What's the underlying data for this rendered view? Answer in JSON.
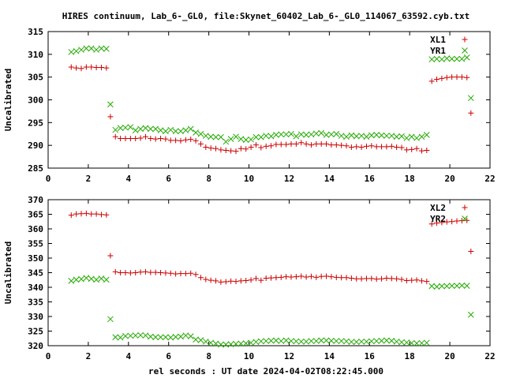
{
  "title": "HIRES continuum, Lab_6-_GL0, file:Skynet_60402_Lab_6-_GL0_114067_63592.cyb.txt",
  "xlabel": "rel seconds : UT date 2024-04-02T08:22:45.000",
  "colors": {
    "red": "#cc0000",
    "green": "#22aa00",
    "axis": "#000000"
  },
  "chart_data": [
    {
      "type": "scatter",
      "ylabel": "Uncalibrated",
      "xlim": [
        0,
        22
      ],
      "ylim": [
        285,
        315
      ],
      "xticks": [
        0,
        2,
        4,
        6,
        8,
        10,
        12,
        14,
        16,
        18,
        20,
        22
      ],
      "yticks": [
        285,
        290,
        295,
        300,
        305,
        310,
        315
      ],
      "legend": "top-right",
      "series": [
        {
          "name": "XL1",
          "marker": "plus",
          "color": "#cc0000",
          "x": [
            1.15,
            1.4,
            1.65,
            1.9,
            2.15,
            2.4,
            2.65,
            2.9,
            3.1,
            3.35,
            3.6,
            3.85,
            4.1,
            4.35,
            4.6,
            4.85,
            5.1,
            5.35,
            5.6,
            5.85,
            6.1,
            6.35,
            6.6,
            6.85,
            7.1,
            7.35,
            7.6,
            7.85,
            8.1,
            8.35,
            8.6,
            8.85,
            9.1,
            9.35,
            9.6,
            9.85,
            10.1,
            10.35,
            10.6,
            10.85,
            11.1,
            11.35,
            11.6,
            11.85,
            12.1,
            12.35,
            12.6,
            12.85,
            13.1,
            13.35,
            13.6,
            13.85,
            14.1,
            14.35,
            14.6,
            14.85,
            15.1,
            15.35,
            15.6,
            15.85,
            16.1,
            16.35,
            16.6,
            16.85,
            17.1,
            17.35,
            17.6,
            17.85,
            18.1,
            18.35,
            18.6,
            18.85,
            19.1,
            19.35,
            19.6,
            19.85,
            20.1,
            20.35,
            20.6,
            20.85,
            21.05
          ],
          "y": [
            307.2,
            307,
            306.9,
            307.2,
            307.2,
            307.1,
            307.1,
            307.0,
            296.3,
            291.9,
            291.5,
            291.5,
            291.5,
            291.5,
            291.6,
            291.9,
            291.5,
            291.4,
            291.5,
            291.4,
            291.1,
            291.1,
            291.0,
            291.2,
            291.3,
            291.0,
            290.3,
            289.6,
            289.4,
            289.3,
            289.0,
            288.9,
            288.8,
            288.7,
            289.3,
            289.2,
            289.6,
            290.1,
            289.5,
            289.8,
            289.9,
            290.2,
            290.2,
            290.2,
            290.3,
            290.3,
            290.6,
            290.3,
            290.1,
            290.3,
            290.3,
            290.3,
            290.1,
            290.1,
            290.0,
            289.9,
            289.6,
            289.7,
            289.6,
            289.8,
            289.9,
            289.7,
            289.7,
            289.7,
            289.8,
            289.6,
            289.5,
            289.0,
            289.1,
            289.3,
            288.8,
            288.9,
            304.1,
            304.5,
            304.7,
            304.9,
            305.0,
            305.0,
            305.0,
            304.9,
            297.1
          ]
        },
        {
          "name": "YR1",
          "marker": "cross",
          "color": "#22aa00",
          "x": [
            1.15,
            1.4,
            1.65,
            1.9,
            2.15,
            2.4,
            2.65,
            2.9,
            3.1,
            3.35,
            3.6,
            3.85,
            4.1,
            4.35,
            4.6,
            4.85,
            5.1,
            5.35,
            5.6,
            5.85,
            6.1,
            6.35,
            6.6,
            6.85,
            7.1,
            7.35,
            7.6,
            7.85,
            8.1,
            8.35,
            8.6,
            8.85,
            9.1,
            9.35,
            9.6,
            9.85,
            10.1,
            10.35,
            10.6,
            10.85,
            11.1,
            11.35,
            11.6,
            11.85,
            12.1,
            12.35,
            12.6,
            12.85,
            13.1,
            13.35,
            13.6,
            13.85,
            14.1,
            14.35,
            14.6,
            14.85,
            15.1,
            15.35,
            15.6,
            15.85,
            16.1,
            16.35,
            16.6,
            16.85,
            17.1,
            17.35,
            17.6,
            17.85,
            18.1,
            18.35,
            18.6,
            18.85,
            19.1,
            19.35,
            19.6,
            19.85,
            20.1,
            20.35,
            20.6,
            20.85,
            21.05
          ],
          "y": [
            310.5,
            310.7,
            311.0,
            311.3,
            311.3,
            311.0,
            311.3,
            311.2,
            299.0,
            293.4,
            293.8,
            293.9,
            294.0,
            293.3,
            293.6,
            293.8,
            293.6,
            293.6,
            293.3,
            293.1,
            293.4,
            293.1,
            293.1,
            293.3,
            293.6,
            292.8,
            292.5,
            292.1,
            291.9,
            291.8,
            291.8,
            290.8,
            291.4,
            291.9,
            291.4,
            291.2,
            291.3,
            291.8,
            291.8,
            292.1,
            292.0,
            292.3,
            292.4,
            292.4,
            292.5,
            292.0,
            292.4,
            292.3,
            292.4,
            292.6,
            292.7,
            292.3,
            292.4,
            292.5,
            292.1,
            291.9,
            292.2,
            292.0,
            292.1,
            291.9,
            292.2,
            292.3,
            292.2,
            292.1,
            292.1,
            291.9,
            292.0,
            291.6,
            291.9,
            291.6,
            291.9,
            292.3,
            308.9,
            309.0,
            308.9,
            309.1,
            309.0,
            309.0,
            309.0,
            309.3,
            300.4
          ]
        }
      ]
    },
    {
      "type": "scatter",
      "ylabel": "Uncalibrated",
      "xlim": [
        0,
        22
      ],
      "ylim": [
        320,
        370
      ],
      "xticks": [
        0,
        2,
        4,
        6,
        8,
        10,
        12,
        14,
        16,
        18,
        20,
        22
      ],
      "yticks": [
        320,
        325,
        330,
        335,
        340,
        345,
        350,
        355,
        360,
        365,
        370
      ],
      "legend": "top-right",
      "series": [
        {
          "name": "XL2",
          "marker": "plus",
          "color": "#cc0000",
          "x": [
            1.15,
            1.4,
            1.65,
            1.9,
            2.15,
            2.4,
            2.65,
            2.9,
            3.1,
            3.35,
            3.6,
            3.85,
            4.1,
            4.35,
            4.6,
            4.85,
            5.1,
            5.35,
            5.6,
            5.85,
            6.1,
            6.35,
            6.6,
            6.85,
            7.1,
            7.35,
            7.6,
            7.85,
            8.1,
            8.35,
            8.6,
            8.85,
            9.1,
            9.35,
            9.6,
            9.85,
            10.1,
            10.35,
            10.6,
            10.85,
            11.1,
            11.35,
            11.6,
            11.85,
            12.1,
            12.35,
            12.6,
            12.85,
            13.1,
            13.35,
            13.6,
            13.85,
            14.1,
            14.35,
            14.6,
            14.85,
            15.1,
            15.35,
            15.6,
            15.85,
            16.1,
            16.35,
            16.6,
            16.85,
            17.1,
            17.35,
            17.6,
            17.85,
            18.1,
            18.35,
            18.6,
            18.85,
            19.1,
            19.35,
            19.6,
            19.85,
            20.1,
            20.35,
            20.6,
            20.85,
            21.05
          ],
          "y": [
            364.7,
            365.1,
            365.2,
            365.3,
            365.1,
            365.1,
            364.9,
            364.8,
            350.8,
            345.3,
            345.0,
            345.0,
            344.9,
            345.0,
            345.2,
            345.3,
            345.1,
            345.1,
            345.0,
            344.9,
            344.8,
            344.6,
            344.7,
            344.7,
            344.8,
            344.4,
            343.3,
            342.7,
            342.4,
            342.2,
            341.8,
            341.9,
            342.1,
            342.0,
            342.2,
            342.3,
            342.5,
            343.0,
            342.4,
            343.1,
            343.2,
            343.3,
            343.4,
            343.6,
            343.5,
            343.6,
            343.8,
            343.5,
            343.7,
            343.4,
            343.7,
            343.8,
            343.6,
            343.4,
            343.3,
            343.3,
            343.1,
            342.9,
            342.9,
            343.0,
            343.0,
            342.8,
            342.9,
            343.1,
            343.0,
            342.9,
            342.7,
            342.3,
            342.4,
            342.5,
            342.2,
            342.0,
            361.7,
            362.0,
            362.2,
            362.4,
            362.5,
            362.7,
            362.8,
            362.9,
            352.3
          ]
        },
        {
          "name": "YR2",
          "marker": "cross",
          "color": "#22aa00",
          "x": [
            1.15,
            1.4,
            1.65,
            1.9,
            2.15,
            2.4,
            2.65,
            2.9,
            3.1,
            3.35,
            3.6,
            3.85,
            4.1,
            4.35,
            4.6,
            4.85,
            5.1,
            5.35,
            5.6,
            5.85,
            6.1,
            6.35,
            6.6,
            6.85,
            7.1,
            7.35,
            7.6,
            7.85,
            8.1,
            8.35,
            8.6,
            8.85,
            9.1,
            9.35,
            9.6,
            9.85,
            10.1,
            10.35,
            10.6,
            10.85,
            11.1,
            11.35,
            11.6,
            11.85,
            12.1,
            12.35,
            12.6,
            12.85,
            13.1,
            13.35,
            13.6,
            13.85,
            14.1,
            14.35,
            14.6,
            14.85,
            15.1,
            15.35,
            15.6,
            15.85,
            16.1,
            16.35,
            16.6,
            16.85,
            17.1,
            17.35,
            17.6,
            17.85,
            18.1,
            18.35,
            18.6,
            18.85,
            19.1,
            19.35,
            19.6,
            19.85,
            20.1,
            20.35,
            20.6,
            20.85,
            21.05
          ],
          "y": [
            342.2,
            342.6,
            342.8,
            343.2,
            342.9,
            342.6,
            343.0,
            342.6,
            329.1,
            322.9,
            322.8,
            323.3,
            323.4,
            323.5,
            323.6,
            323.5,
            323.1,
            322.9,
            322.9,
            322.9,
            322.8,
            323.0,
            323.1,
            323.5,
            323.2,
            322.1,
            321.9,
            321.4,
            321.0,
            320.7,
            320.4,
            320.4,
            320.5,
            320.6,
            320.7,
            320.8,
            321.0,
            321.3,
            321.5,
            321.6,
            321.7,
            321.8,
            321.6,
            321.8,
            321.6,
            321.5,
            321.4,
            321.4,
            321.6,
            321.6,
            321.8,
            321.8,
            321.7,
            321.6,
            321.6,
            321.5,
            321.3,
            321.3,
            321.4,
            321.4,
            321.5,
            321.6,
            321.7,
            321.8,
            321.7,
            321.4,
            321.2,
            321.1,
            320.9,
            320.8,
            320.9,
            321.0,
            340.4,
            340.2,
            340.4,
            340.4,
            340.5,
            340.5,
            340.6,
            340.5,
            330.6
          ]
        }
      ]
    }
  ]
}
